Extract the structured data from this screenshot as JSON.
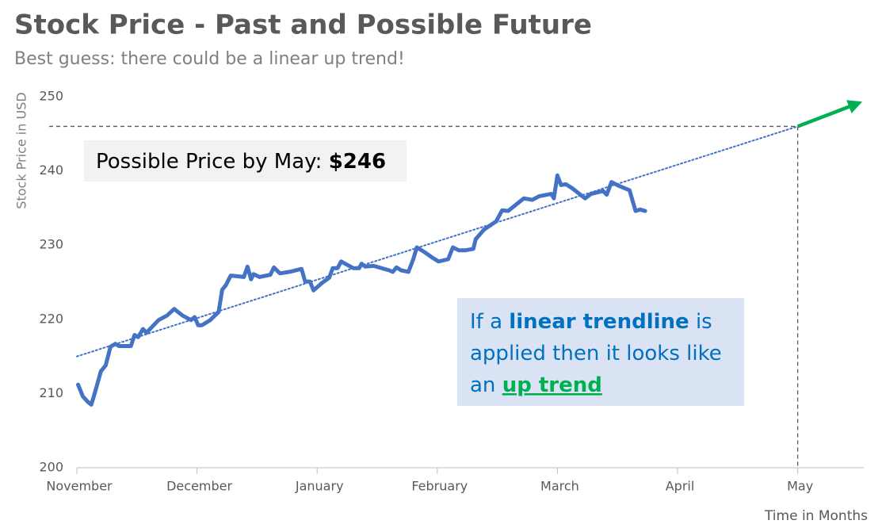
{
  "chart_data": {
    "type": "line",
    "title": "Stock Price - Past and Possible Future",
    "subtitle": "Best guess: there could be a linear up trend!",
    "y_label": "Stock Price in USD",
    "x_label": "Time in Months",
    "ylim": [
      200,
      250
    ],
    "yticks": [
      200,
      210,
      220,
      230,
      240,
      250
    ],
    "xlim": [
      0,
      6.55
    ],
    "xticks": [
      {
        "value": 0,
        "label": "November"
      },
      {
        "value": 1,
        "label": "December"
      },
      {
        "value": 2,
        "label": "January"
      },
      {
        "value": 3,
        "label": "February"
      },
      {
        "value": 4,
        "label": "March"
      },
      {
        "value": 5,
        "label": "April"
      },
      {
        "value": 6,
        "label": "May"
      }
    ],
    "series": [
      {
        "color": "#4472c4",
        "style": "solid",
        "x": [
          0.01,
          0.05,
          0.09,
          0.12,
          0.15,
          0.2,
          0.24,
          0.28,
          0.32,
          0.35,
          0.45,
          0.48,
          0.51,
          0.55,
          0.58,
          0.68,
          0.75,
          0.81,
          0.88,
          0.95,
          0.98,
          1.01,
          1.04,
          1.11,
          1.18,
          1.21,
          1.24,
          1.28,
          1.34,
          1.39,
          1.42,
          1.45,
          1.47,
          1.52,
          1.61,
          1.64,
          1.69,
          1.77,
          1.87,
          1.9,
          1.94,
          1.97,
          2.04,
          2.1,
          2.13,
          2.17,
          2.2,
          2.3,
          2.35,
          2.37,
          2.4,
          2.47,
          2.6,
          2.63,
          2.66,
          2.7,
          2.76,
          2.8,
          2.83,
          2.89,
          2.96,
          3.01,
          3.09,
          3.13,
          3.18,
          3.23,
          3.3,
          3.32,
          3.39,
          3.49,
          3.54,
          3.59,
          3.72,
          3.79,
          3.85,
          3.95,
          3.97,
          4.0,
          4.03,
          4.07,
          4.12,
          4.23,
          4.28,
          4.38,
          4.41,
          4.45,
          4.51,
          4.6,
          4.65,
          4.69,
          4.73
        ],
        "values": [
          211.2,
          209.6,
          208.9,
          208.5,
          210.1,
          213.0,
          213.8,
          216.3,
          216.7,
          216.4,
          216.4,
          217.9,
          217.6,
          218.7,
          218.2,
          219.9,
          220.5,
          221.4,
          220.5,
          219.9,
          220.3,
          219.2,
          219.2,
          219.9,
          221.0,
          224.0,
          224.6,
          225.9,
          225.8,
          225.7,
          227.1,
          225.4,
          226.1,
          225.7,
          226.0,
          227.0,
          226.2,
          226.4,
          226.8,
          225.1,
          225.1,
          223.9,
          224.9,
          225.6,
          226.9,
          226.9,
          227.8,
          226.9,
          226.9,
          227.5,
          227.1,
          227.2,
          226.6,
          226.4,
          227.0,
          226.6,
          226.4,
          228.1,
          229.7,
          229.1,
          228.3,
          227.8,
          228.1,
          229.7,
          229.3,
          229.3,
          229.5,
          230.8,
          232.1,
          233.2,
          234.7,
          234.6,
          236.3,
          236.1,
          236.6,
          236.9,
          236.3,
          239.4,
          238.1,
          238.2,
          237.7,
          236.3,
          236.9,
          237.3,
          236.8,
          238.5,
          238.0,
          237.4,
          234.6,
          234.8,
          234.6
        ]
      },
      {
        "color": "#4472c4",
        "style": "dotted",
        "x": [
          0,
          6
        ],
        "values": [
          215,
          246
        ]
      }
    ],
    "guide": {
      "x": 6,
      "y": 246
    },
    "arrow_color": "#00b050",
    "price_note": {
      "text": "Possible Price by May:",
      "value": "$246"
    },
    "trend_note": {
      "parts": [
        "If a",
        "linear trendline",
        "is",
        "applied then it looks like",
        "an",
        "up trend"
      ]
    }
  }
}
